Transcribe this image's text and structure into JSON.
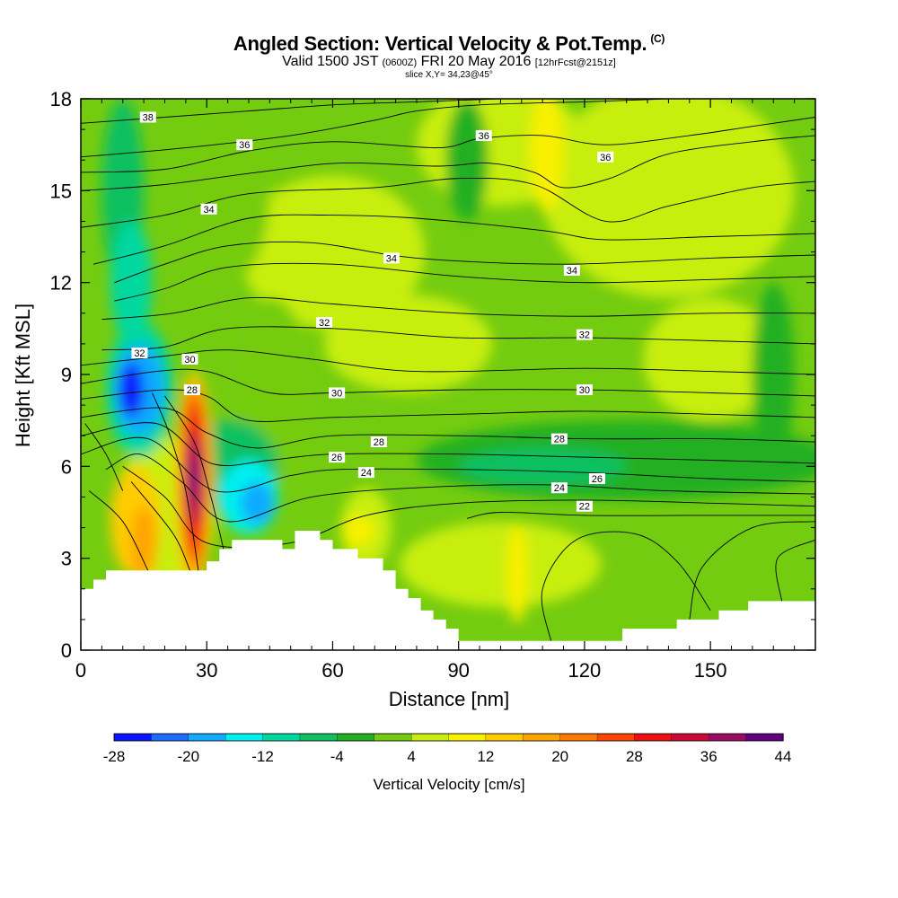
{
  "header": {
    "title": "Angled Section: Vertical Velocity & Pot.Temp.",
    "title_unit": "(C)",
    "valid_prefix": "Valid 1500 JST",
    "valid_utc": "(0600Z)",
    "valid_date": "FRI 20 May 2016",
    "forecast_info": "[12hrFcst@2151z]",
    "slice": "slice X,Y= 34,23@45°"
  },
  "chart_data": {
    "type": "heatmap",
    "xlabel": "Distance [nm]",
    "ylabel": "Height [Kft MSL]",
    "x_ticks": [
      "0",
      "30",
      "60",
      "90",
      "120",
      "150"
    ],
    "x_tick_values": [
      0,
      30,
      60,
      90,
      120,
      150
    ],
    "y_ticks": [
      "0",
      "3",
      "6",
      "9",
      "12",
      "15",
      "18"
    ],
    "y_tick_values": [
      0,
      3,
      6,
      9,
      12,
      15,
      18
    ],
    "xlim": [
      0,
      175
    ],
    "ylim": [
      0,
      18
    ],
    "colorbar": {
      "label": "Vertical Velocity [cm/s]",
      "tick_labels": [
        "-28",
        "-20",
        "-12",
        "-4",
        "4",
        "12",
        "20",
        "28",
        "36",
        "44"
      ],
      "bounds": [
        -28,
        -24,
        -20,
        -16,
        -12,
        -8,
        -4,
        0,
        4,
        8,
        12,
        16,
        20,
        24,
        28,
        32,
        36,
        40,
        44
      ],
      "colors": [
        "#0a14ff",
        "#1e6bff",
        "#10aaff",
        "#00f0f0",
        "#00d8a0",
        "#10c060",
        "#22b020",
        "#74cc10",
        "#c8ee10",
        "#f8f000",
        "#ffcc00",
        "#ffa400",
        "#ff7800",
        "#ff4400",
        "#ee1010",
        "#cc0838",
        "#9c0c60",
        "#600080"
      ]
    },
    "isentrope_labels": [
      {
        "text": "38",
        "x": 16,
        "y": 17.4
      },
      {
        "text": "36",
        "x": 39,
        "y": 16.5
      },
      {
        "text": "36",
        "x": 96,
        "y": 16.8
      },
      {
        "text": "36",
        "x": 125,
        "y": 16.1
      },
      {
        "text": "34",
        "x": 30.5,
        "y": 14.4
      },
      {
        "text": "34",
        "x": 74,
        "y": 12.8
      },
      {
        "text": "34",
        "x": 117,
        "y": 12.4
      },
      {
        "text": "32",
        "x": 14,
        "y": 9.7
      },
      {
        "text": "32",
        "x": 58,
        "y": 10.7
      },
      {
        "text": "32",
        "x": 120,
        "y": 10.3
      },
      {
        "text": "30",
        "x": 26,
        "y": 9.5
      },
      {
        "text": "30",
        "x": 61,
        "y": 8.4
      },
      {
        "text": "30",
        "x": 120,
        "y": 8.5
      },
      {
        "text": "28",
        "x": 26.5,
        "y": 8.5
      },
      {
        "text": "28",
        "x": 71,
        "y": 6.8
      },
      {
        "text": "28",
        "x": 114,
        "y": 6.9
      },
      {
        "text": "26",
        "x": 61,
        "y": 6.3
      },
      {
        "text": "26",
        "x": 123,
        "y": 5.6
      },
      {
        "text": "24",
        "x": 68,
        "y": 5.8
      },
      {
        "text": "24",
        "x": 114,
        "y": 5.3
      },
      {
        "text": "22",
        "x": 120,
        "y": 4.7
      }
    ],
    "terrain": [
      [
        0,
        2
      ],
      [
        3,
        2
      ],
      [
        3,
        2.3
      ],
      [
        6,
        2.3
      ],
      [
        6,
        2.6
      ],
      [
        30,
        2.6
      ],
      [
        30,
        2.9
      ],
      [
        33,
        2.9
      ],
      [
        33,
        3.3
      ],
      [
        36,
        3.3
      ],
      [
        36,
        3.6
      ],
      [
        48,
        3.6
      ],
      [
        48,
        3.3
      ],
      [
        51,
        3.3
      ],
      [
        51,
        3.9
      ],
      [
        57,
        3.9
      ],
      [
        57,
        3.6
      ],
      [
        60,
        3.6
      ],
      [
        60,
        3.3
      ],
      [
        66,
        3.3
      ],
      [
        66,
        3.0
      ],
      [
        72,
        3.0
      ],
      [
        72,
        2.6
      ],
      [
        75,
        2.6
      ],
      [
        75,
        2.0
      ],
      [
        78,
        2.0
      ],
      [
        78,
        1.7
      ],
      [
        81,
        1.7
      ],
      [
        81,
        1.3
      ],
      [
        84,
        1.3
      ],
      [
        84,
        1.0
      ],
      [
        87,
        1.0
      ],
      [
        87,
        0.7
      ],
      [
        90,
        0.7
      ],
      [
        90,
        0.3
      ],
      [
        129,
        0.3
      ],
      [
        129,
        0.7
      ],
      [
        142,
        0.7
      ],
      [
        142,
        1.0
      ],
      [
        152,
        1.0
      ],
      [
        152,
        1.3
      ],
      [
        159,
        1.3
      ],
      [
        159,
        1.6
      ],
      [
        175,
        1.6
      ]
    ],
    "cells": [
      {
        "v": 6,
        "x": 140,
        "y": 15,
        "rx": 30,
        "ry": 3.5
      },
      {
        "v": 6,
        "x": 100,
        "y": 16.5,
        "rx": 20,
        "ry": 2
      },
      {
        "v": 6,
        "x": 60,
        "y": 13,
        "rx": 22,
        "ry": 2.5
      },
      {
        "v": 6,
        "x": 78,
        "y": 10,
        "rx": 20,
        "ry": 1.6
      },
      {
        "v": 6,
        "x": 150,
        "y": 9.5,
        "rx": 16,
        "ry": 2
      },
      {
        "v": 10,
        "x": 111,
        "y": 16.3,
        "rx": 4,
        "ry": 2
      },
      {
        "v": 6,
        "x": 20,
        "y": 4.5,
        "rx": 12,
        "ry": 2.5
      },
      {
        "v": 6,
        "x": 100,
        "y": 2.8,
        "rx": 24,
        "ry": 1.4
      },
      {
        "v": 10,
        "x": 104,
        "y": 2.5,
        "rx": 2.5,
        "ry": 1.6
      },
      {
        "v": 6,
        "x": 68,
        "y": 4,
        "rx": 6,
        "ry": 1.3
      },
      {
        "v": 2,
        "x": 45,
        "y": 8.5,
        "rx": 10,
        "ry": 3
      },
      {
        "v": 2,
        "x": 35,
        "y": 15,
        "rx": 10,
        "ry": 3
      },
      {
        "v": -2,
        "x": 130,
        "y": 6.2,
        "rx": 50,
        "ry": 1.3
      },
      {
        "v": -2,
        "x": 92,
        "y": 16,
        "rx": 5,
        "ry": 2
      },
      {
        "v": -2,
        "x": 165,
        "y": 9,
        "rx": 5,
        "ry": 3
      },
      {
        "v": -6,
        "x": 10,
        "y": 15,
        "rx": 5,
        "ry": 3
      },
      {
        "v": -10,
        "x": 12,
        "y": 12,
        "rx": 5,
        "ry": 2
      },
      {
        "v": -6,
        "x": 35,
        "y": 6,
        "rx": 12,
        "ry": 1.5
      },
      {
        "v": -6,
        "x": 110,
        "y": 6,
        "rx": 20,
        "ry": 0.6
      },
      {
        "v": -10,
        "x": 14,
        "y": 8.5,
        "rx": 8,
        "ry": 2.2
      },
      {
        "v": -14,
        "x": 40,
        "y": 5,
        "rx": 7,
        "ry": 1.2
      },
      {
        "v": -18,
        "x": 14,
        "y": 8.5,
        "rx": 6,
        "ry": 1.5
      },
      {
        "v": -18,
        "x": 42,
        "y": 4.8,
        "rx": 4,
        "ry": 0.7
      },
      {
        "v": -26,
        "x": 12,
        "y": 8.5,
        "rx": 3,
        "ry": 0.9
      },
      {
        "v": 14,
        "x": 13,
        "y": 4.2,
        "rx": 6,
        "ry": 1.8
      },
      {
        "v": 18,
        "x": 15,
        "y": 3.5,
        "rx": 3,
        "ry": 1.2
      },
      {
        "v": 10,
        "x": 66,
        "y": 3.9,
        "rx": 4,
        "ry": 0.5
      },
      {
        "v": 14,
        "x": 27,
        "y": 5.6,
        "rx": 4.5,
        "ry": 3.5
      },
      {
        "v": 22,
        "x": 27,
        "y": 5.6,
        "rx": 3.5,
        "ry": 3.1
      },
      {
        "v": 30,
        "x": 27,
        "y": 5.6,
        "rx": 2.5,
        "ry": 2.5
      },
      {
        "v": 38,
        "x": 27,
        "y": 5.6,
        "rx": 1.6,
        "ry": 1.5
      },
      {
        "v": 44,
        "x": 27,
        "y": 5.6,
        "rx": 1.0,
        "ry": 0.8
      }
    ],
    "isentropes": [
      [
        [
          0,
          17.2
        ],
        [
          20,
          17.4
        ],
        [
          40,
          17.6
        ],
        [
          60,
          17.8
        ],
        [
          80,
          17.9
        ],
        [
          100,
          18
        ]
      ],
      [
        [
          0,
          16.1
        ],
        [
          25,
          16.4
        ],
        [
          50,
          16.8
        ],
        [
          70,
          17.3
        ],
        [
          80,
          17.6
        ],
        [
          95,
          17.8
        ],
        [
          120,
          17.9
        ],
        [
          140,
          18
        ]
      ],
      [
        [
          0,
          15.6
        ],
        [
          20,
          15.7
        ],
        [
          40,
          16.3
        ],
        [
          60,
          16.6
        ],
        [
          85,
          16.4
        ],
        [
          95,
          16.7
        ],
        [
          110,
          16.8
        ],
        [
          125,
          16.5
        ],
        [
          145,
          16.8
        ],
        [
          160,
          17.1
        ],
        [
          175,
          17.4
        ]
      ],
      [
        [
          0,
          15
        ],
        [
          20,
          15.2
        ],
        [
          42,
          15.6
        ],
        [
          62,
          15.9
        ],
        [
          85,
          15.8
        ],
        [
          97,
          15.9
        ],
        [
          108,
          15.6
        ],
        [
          115,
          15.1
        ],
        [
          126,
          15.4
        ],
        [
          140,
          16.2
        ],
        [
          160,
          16.6
        ],
        [
          175,
          16.8
        ]
      ],
      [
        [
          0,
          13.8
        ],
        [
          20,
          14.2
        ],
        [
          40,
          14.9
        ],
        [
          70,
          15.1
        ],
        [
          90,
          15.4
        ],
        [
          108,
          15.2
        ],
        [
          125,
          14
        ],
        [
          140,
          14.5
        ],
        [
          160,
          15.1
        ],
        [
          175,
          15.3
        ]
      ],
      [
        [
          3,
          12.6
        ],
        [
          20,
          13.2
        ],
        [
          40,
          14.1
        ],
        [
          60,
          14.2
        ],
        [
          80,
          14.1
        ],
        [
          110,
          13.7
        ],
        [
          125,
          13.4
        ],
        [
          150,
          13.5
        ],
        [
          175,
          13.6
        ]
      ],
      [
        [
          8,
          12
        ],
        [
          20,
          12.6
        ],
        [
          35,
          13.2
        ],
        [
          55,
          13.3
        ],
        [
          80,
          12.8
        ],
        [
          115,
          12.6
        ],
        [
          150,
          12.8
        ],
        [
          175,
          12.9
        ]
      ],
      [
        [
          8,
          11.4
        ],
        [
          20,
          11.8
        ],
        [
          35,
          12.5
        ],
        [
          60,
          12.6
        ],
        [
          90,
          12.2
        ],
        [
          120,
          12
        ],
        [
          150,
          12.1
        ],
        [
          175,
          12.2
        ]
      ],
      [
        [
          5,
          10.8
        ],
        [
          22,
          11
        ],
        [
          40,
          11.5
        ],
        [
          60,
          11.3
        ],
        [
          90,
          11
        ],
        [
          120,
          10.9
        ],
        [
          150,
          11
        ],
        [
          175,
          11
        ]
      ],
      [
        [
          5,
          9.8
        ],
        [
          20,
          9.9
        ],
        [
          35,
          10.5
        ],
        [
          60,
          10.5
        ],
        [
          90,
          10.2
        ],
        [
          120,
          10.2
        ],
        [
          150,
          10.1
        ],
        [
          175,
          10
        ]
      ],
      [
        [
          0,
          9.3
        ],
        [
          20,
          9.6
        ],
        [
          35,
          9.8
        ],
        [
          55,
          9.5
        ],
        [
          80,
          9.1
        ],
        [
          120,
          9.2
        ],
        [
          150,
          9.1
        ],
        [
          175,
          9
        ]
      ],
      [
        [
          0,
          8.7
        ],
        [
          18,
          9.1
        ],
        [
          30,
          9.1
        ],
        [
          45,
          8.4
        ],
        [
          60,
          8.4
        ],
        [
          90,
          8.5
        ],
        [
          120,
          8.5
        ],
        [
          150,
          8.4
        ],
        [
          175,
          8.3
        ]
      ],
      [
        [
          0,
          8.2
        ],
        [
          20,
          8.5
        ],
        [
          30,
          8.3
        ],
        [
          40,
          7.5
        ],
        [
          60,
          7.6
        ],
        [
          90,
          7.7
        ],
        [
          120,
          7.8
        ],
        [
          150,
          7.7
        ],
        [
          175,
          7.6
        ]
      ],
      [
        [
          0,
          7.6
        ],
        [
          20,
          7.9
        ],
        [
          30,
          7.1
        ],
        [
          42,
          6.6
        ],
        [
          60,
          7
        ],
        [
          90,
          7
        ],
        [
          120,
          6.9
        ],
        [
          150,
          6.9
        ],
        [
          175,
          6.8
        ]
      ],
      [
        [
          0,
          7
        ],
        [
          18,
          7.4
        ],
        [
          31,
          6.1
        ],
        [
          45,
          6.2
        ],
        [
          60,
          6.4
        ],
        [
          90,
          6.4
        ],
        [
          120,
          6.3
        ],
        [
          150,
          6.2
        ],
        [
          175,
          6.1
        ]
      ],
      [
        [
          0,
          6.4
        ],
        [
          16,
          6.9
        ],
        [
          32,
          5.2
        ],
        [
          50,
          5.7
        ],
        [
          62,
          5.9
        ],
        [
          90,
          5.9
        ],
        [
          120,
          5.8
        ],
        [
          150,
          5.6
        ],
        [
          175,
          5.5
        ]
      ],
      [
        [
          6,
          5.9
        ],
        [
          14,
          6.4
        ],
        [
          24,
          5.5
        ],
        [
          35,
          4.2
        ],
        [
          55,
          5
        ],
        [
          80,
          5.3
        ],
        [
          110,
          5.4
        ],
        [
          140,
          5.2
        ],
        [
          175,
          5.1
        ]
      ],
      [
        [
          10,
          6
        ],
        [
          20,
          5
        ],
        [
          30,
          3.5
        ],
        [
          50,
          3.5
        ],
        [
          68,
          4.4
        ],
        [
          90,
          4.8
        ],
        [
          120,
          4.9
        ],
        [
          150,
          4.8
        ],
        [
          175,
          4.7
        ]
      ],
      [
        [
          12,
          5.5
        ],
        [
          22,
          3.8
        ],
        [
          26,
          2.6
        ]
      ],
      [
        [
          2,
          5.2
        ],
        [
          10,
          4.2
        ],
        [
          16,
          2.6
        ]
      ],
      [
        [
          92,
          4.3
        ],
        [
          100,
          4.5
        ],
        [
          120,
          4.4
        ],
        [
          150,
          4.4
        ],
        [
          175,
          4.4
        ]
      ],
      [
        [
          1,
          7.4
        ],
        [
          6,
          6.4
        ],
        [
          10,
          5.2
        ]
      ],
      [
        [
          112,
          0.3
        ],
        [
          110,
          2
        ],
        [
          118,
          3.6
        ],
        [
          132,
          3.8
        ],
        [
          142,
          2.9
        ],
        [
          150,
          1.3
        ]
      ],
      [
        [
          167,
          1.6
        ],
        [
          166,
          3
        ],
        [
          175,
          3.6
        ]
      ],
      [
        [
          145,
          1
        ],
        [
          148,
          2.7
        ],
        [
          160,
          4
        ],
        [
          175,
          4.2
        ]
      ],
      [
        [
          17,
          8.4
        ],
        [
          21,
          7.1
        ],
        [
          25,
          5.2
        ],
        [
          28,
          2.6
        ]
      ],
      [
        [
          20,
          8.3
        ],
        [
          27,
          6.8
        ],
        [
          31,
          5
        ],
        [
          34,
          3.3
        ]
      ]
    ]
  }
}
